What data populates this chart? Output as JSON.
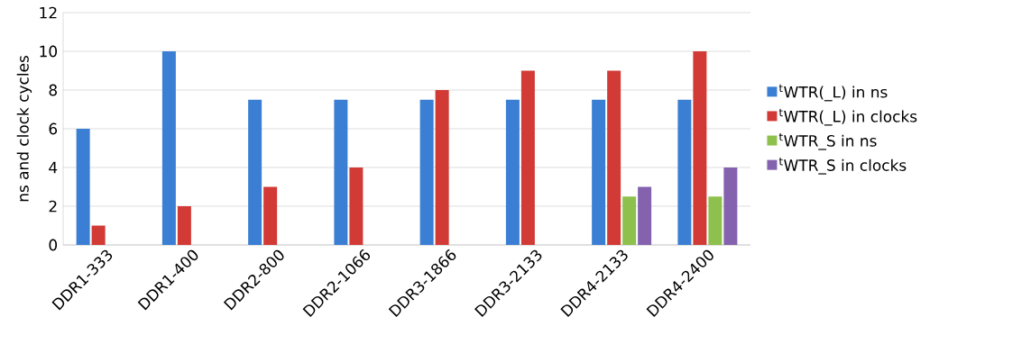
{
  "chart_data": {
    "type": "bar",
    "ylabel": "ns and clock cycles",
    "categories": [
      "DDR1-333",
      "DDR1-400",
      "DDR2-800",
      "DDR2-1066",
      "DDR3-1866",
      "DDR3-2133",
      "DDR4-2133",
      "DDR4-2400"
    ],
    "series": [
      {
        "name": "$^{t}$WTR(_L) in ns",
        "color": "#3a7fd4",
        "values": [
          6,
          10,
          7.5,
          7.5,
          7.5,
          7.5,
          7.5,
          7.5
        ]
      },
      {
        "name": "$^{t}$WTR(_L) in clocks",
        "color": "#d23a36",
        "values": [
          1,
          2,
          3,
          4,
          8,
          9,
          9,
          10
        ]
      },
      {
        "name": "$^{t}$WTR_S in ns",
        "color": "#8dc04c",
        "values": [
          null,
          null,
          null,
          null,
          null,
          null,
          2.5,
          2.5
        ]
      },
      {
        "name": "$^{t}$WTR_S in clocks",
        "color": "#8462ae",
        "values": [
          null,
          null,
          null,
          null,
          null,
          null,
          3,
          4
        ]
      }
    ],
    "ylim": [
      0,
      12
    ],
    "yticks": [
      0,
      2,
      4,
      6,
      8,
      10,
      12
    ],
    "grid": "y",
    "legend": "right"
  }
}
